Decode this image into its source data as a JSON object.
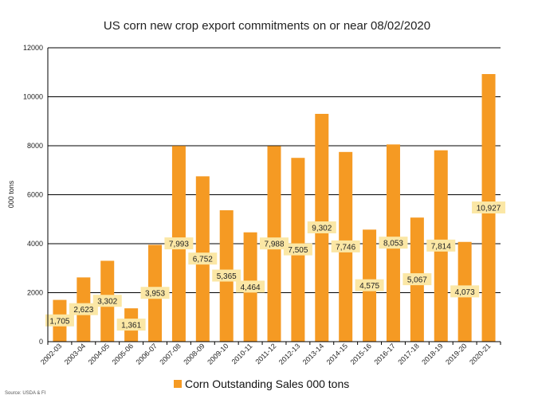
{
  "chart_data": {
    "type": "bar",
    "title": "US corn new crop export commitments on or near 08/02/2020",
    "xlabel": "",
    "ylabel": "000 tons",
    "ylim": [
      0,
      12000
    ],
    "yticks": [
      0,
      2000,
      4000,
      6000,
      8000,
      10000,
      12000
    ],
    "grid": true,
    "legend_position": "bottom",
    "bar_color": "#F59A23",
    "label_box_color": "#FBE7A5",
    "categories": [
      "2002-03",
      "2003-04",
      "2004-05",
      "2005-06",
      "2006-07",
      "2007-08",
      "2008-09",
      "2009-10",
      "2010-11",
      "2011-12",
      "2012-13",
      "2013-14",
      "2014-15",
      "2015-16",
      "2016-17",
      "2017-18",
      "2018-19",
      "2019-20",
      "2020-21"
    ],
    "series": [
      {
        "name": "Corn Outstanding Sales 000 tons",
        "values": [
          1705,
          2623,
          3302,
          1361,
          3953,
          7993,
          6752,
          5365,
          4464,
          7988,
          7505,
          9302,
          7746,
          4575,
          8053,
          5067,
          7814,
          4073,
          10927
        ]
      }
    ],
    "data_labels": [
      "1,705",
      "2,623",
      "3,302",
      "1,361",
      "3,953",
      "7,993",
      "6,752",
      "5,365",
      "4,464",
      "7,988",
      "7,505",
      "9,302",
      "7,746",
      "4,575",
      "8,053",
      "5,067",
      "7,814",
      "4,073",
      "10,927"
    ],
    "source": "Source: USDA & FI"
  }
}
